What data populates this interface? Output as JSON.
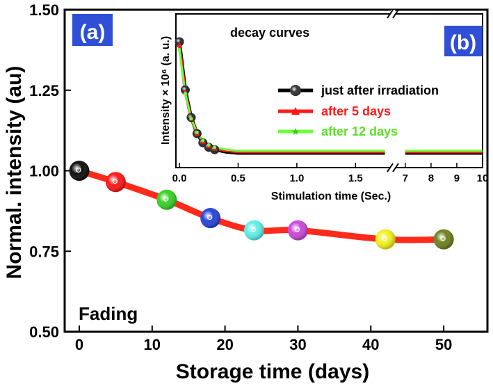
{
  "colors": {
    "panel_label_bg": "#2f4fd6",
    "panel_label_text": "#ffffff",
    "main_line": "#ff2a1a"
  },
  "chart_data": [
    {
      "type": "line",
      "panel_label": "(a)",
      "xlabel": "Storage time (days)",
      "ylabel": "Normal. intensity (au)",
      "xlim": [
        -2,
        56
      ],
      "ylim": [
        0.5,
        1.5
      ],
      "xticks": [
        "0",
        "10",
        "20",
        "30",
        "40",
        "50"
      ],
      "yticks": [
        "0.50",
        "0.75",
        "1.00",
        "1.25",
        "1.50"
      ],
      "annotation": "Fading",
      "series": [
        {
          "x": [
            0,
            5,
            12,
            18,
            24,
            30,
            42,
            50
          ],
          "y": [
            1.0,
            0.965,
            0.91,
            0.853,
            0.815,
            0.815,
            0.787,
            0.787
          ],
          "marker_colors": [
            "#101010",
            "#ff1a1a",
            "#39d126",
            "#2946d8",
            "#5ef0e6",
            "#c94bd8",
            "#f3f01c",
            "#6e8220"
          ]
        }
      ]
    },
    {
      "type": "line",
      "panel_label": "(b)",
      "title": "decay curves",
      "xlabel": "Stimulation time (Sec.)",
      "ylabel": "Intensity × 10⁶ (a. u.)",
      "xlim": [
        0,
        10
      ],
      "x_break": [
        1.8,
        6.6
      ],
      "xticks_left": [
        "0.0",
        "0.5",
        "1.0",
        "1.5"
      ],
      "xticks_right": [
        "7",
        "8",
        "9",
        "10"
      ],
      "legend_position": "right",
      "series": [
        {
          "name": "just after irradiation",
          "color": "#000000",
          "x": [
            0,
            0.05,
            0.1,
            0.15,
            0.2,
            0.25,
            0.3,
            0.4,
            0.5,
            0.75,
            1.0,
            1.25,
            1.5,
            1.75,
            7,
            8,
            9,
            10
          ],
          "y": [
            1.0,
            0.58,
            0.34,
            0.2,
            0.12,
            0.08,
            0.06,
            0.04,
            0.03,
            0.03,
            0.03,
            0.03,
            0.03,
            0.03,
            0.03,
            0.03,
            0.03,
            0.03
          ]
        },
        {
          "name": "after 5 days",
          "color": "#ff1a1a",
          "x": [
            0,
            0.05,
            0.1,
            0.15,
            0.2,
            0.25,
            0.3,
            0.4,
            0.5,
            0.75,
            1.0,
            1.25,
            1.5,
            1.75,
            7,
            8,
            9,
            10
          ],
          "y": [
            0.97,
            0.56,
            0.33,
            0.2,
            0.13,
            0.09,
            0.07,
            0.05,
            0.04,
            0.04,
            0.04,
            0.04,
            0.04,
            0.04,
            0.04,
            0.04,
            0.04,
            0.04
          ]
        },
        {
          "name": "after 12 days",
          "color": "#6dff3a",
          "x": [
            0,
            0.05,
            0.1,
            0.15,
            0.2,
            0.25,
            0.3,
            0.4,
            0.5,
            0.75,
            1.0,
            1.25,
            1.5,
            1.75,
            7,
            8,
            9,
            10
          ],
          "y": [
            0.93,
            0.55,
            0.33,
            0.21,
            0.14,
            0.1,
            0.08,
            0.06,
            0.05,
            0.05,
            0.05,
            0.05,
            0.05,
            0.05,
            0.05,
            0.05,
            0.05,
            0.05
          ]
        }
      ]
    }
  ]
}
